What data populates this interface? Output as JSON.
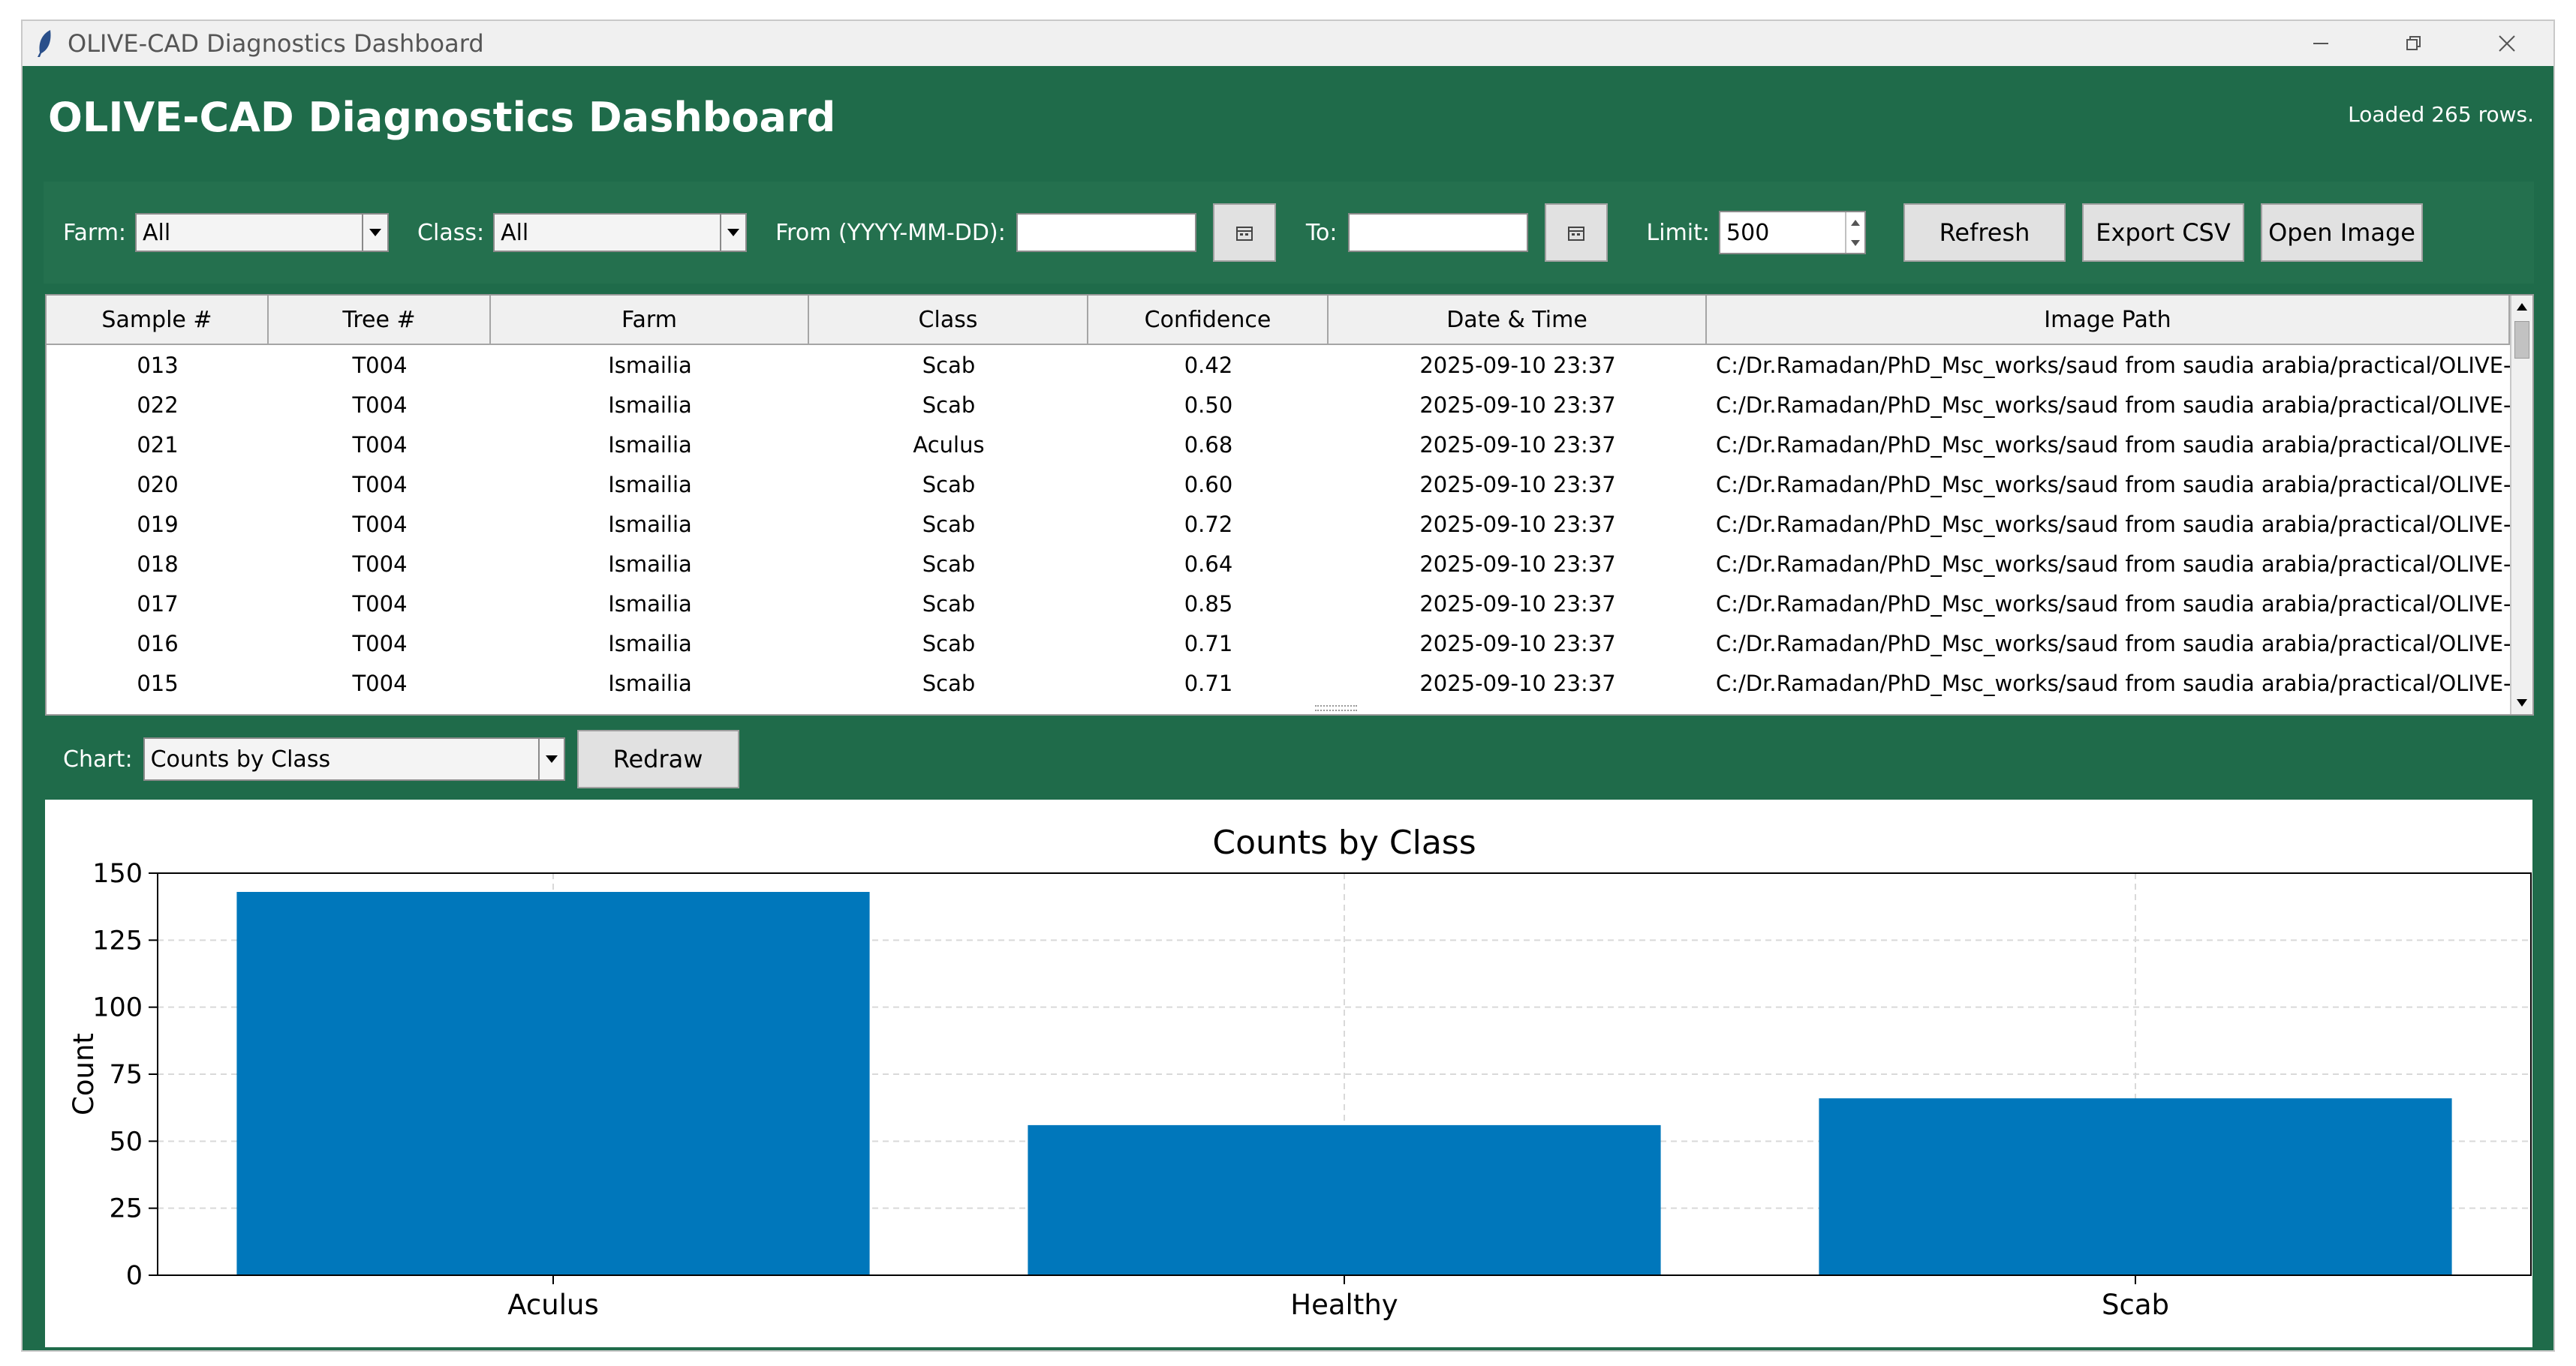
{
  "window": {
    "title": "OLIVE-CAD Diagnostics Dashboard"
  },
  "header": {
    "title": "OLIVE-CAD Diagnostics Dashboard",
    "status": "Loaded 265 rows."
  },
  "filters": {
    "farm_label": "Farm:",
    "farm_value": "All",
    "class_label": "Class:",
    "class_value": "All",
    "from_label": "From (YYYY-MM-DD):",
    "from_value": "",
    "to_label": "To:",
    "to_value": "",
    "limit_label": "Limit:",
    "limit_value": "500",
    "refresh_label": "Refresh",
    "export_label": "Export CSV",
    "open_image_label": "Open Image"
  },
  "table": {
    "columns": [
      "Sample #",
      "Tree #",
      "Farm",
      "Class",
      "Confidence",
      "Date & Time",
      "Image Path"
    ],
    "rows": [
      [
        "013",
        "T004",
        "Ismailia",
        "Scab",
        "0.42",
        "2025-09-10 23:37",
        "C:/Dr.Ramadan/PhD_Msc_works/saud from saudia arabia/practical/OLIVE-"
      ],
      [
        "022",
        "T004",
        "Ismailia",
        "Scab",
        "0.50",
        "2025-09-10 23:37",
        "C:/Dr.Ramadan/PhD_Msc_works/saud from saudia arabia/practical/OLIVE-"
      ],
      [
        "021",
        "T004",
        "Ismailia",
        "Aculus",
        "0.68",
        "2025-09-10 23:37",
        "C:/Dr.Ramadan/PhD_Msc_works/saud from saudia arabia/practical/OLIVE-"
      ],
      [
        "020",
        "T004",
        "Ismailia",
        "Scab",
        "0.60",
        "2025-09-10 23:37",
        "C:/Dr.Ramadan/PhD_Msc_works/saud from saudia arabia/practical/OLIVE-"
      ],
      [
        "019",
        "T004",
        "Ismailia",
        "Scab",
        "0.72",
        "2025-09-10 23:37",
        "C:/Dr.Ramadan/PhD_Msc_works/saud from saudia arabia/practical/OLIVE-"
      ],
      [
        "018",
        "T004",
        "Ismailia",
        "Scab",
        "0.64",
        "2025-09-10 23:37",
        "C:/Dr.Ramadan/PhD_Msc_works/saud from saudia arabia/practical/OLIVE-"
      ],
      [
        "017",
        "T004",
        "Ismailia",
        "Scab",
        "0.85",
        "2025-09-10 23:37",
        "C:/Dr.Ramadan/PhD_Msc_works/saud from saudia arabia/practical/OLIVE-"
      ],
      [
        "016",
        "T004",
        "Ismailia",
        "Scab",
        "0.71",
        "2025-09-10 23:37",
        "C:/Dr.Ramadan/PhD_Msc_works/saud from saudia arabia/practical/OLIVE-"
      ],
      [
        "015",
        "T004",
        "Ismailia",
        "Scab",
        "0.71",
        "2025-09-10 23:37",
        "C:/Dr.Ramadan/PhD_Msc_works/saud from saudia arabia/practical/OLIVE-"
      ]
    ]
  },
  "chart_controls": {
    "chart_label": "Chart:",
    "chart_value": "Counts by Class",
    "redraw_label": "Redraw"
  },
  "colors": {
    "window_green": "#1f6b4a",
    "bar_blue": "#0077bb"
  },
  "chart_data": {
    "type": "bar",
    "title": "Counts by Class",
    "xlabel": "",
    "ylabel": "Count",
    "categories": [
      "Aculus",
      "Healthy",
      "Scab"
    ],
    "values": [
      143,
      56,
      66
    ],
    "ylim": [
      0,
      150
    ],
    "yticks": [
      0,
      25,
      50,
      75,
      100,
      125,
      150
    ],
    "grid": true,
    "color": "#0077bb"
  }
}
